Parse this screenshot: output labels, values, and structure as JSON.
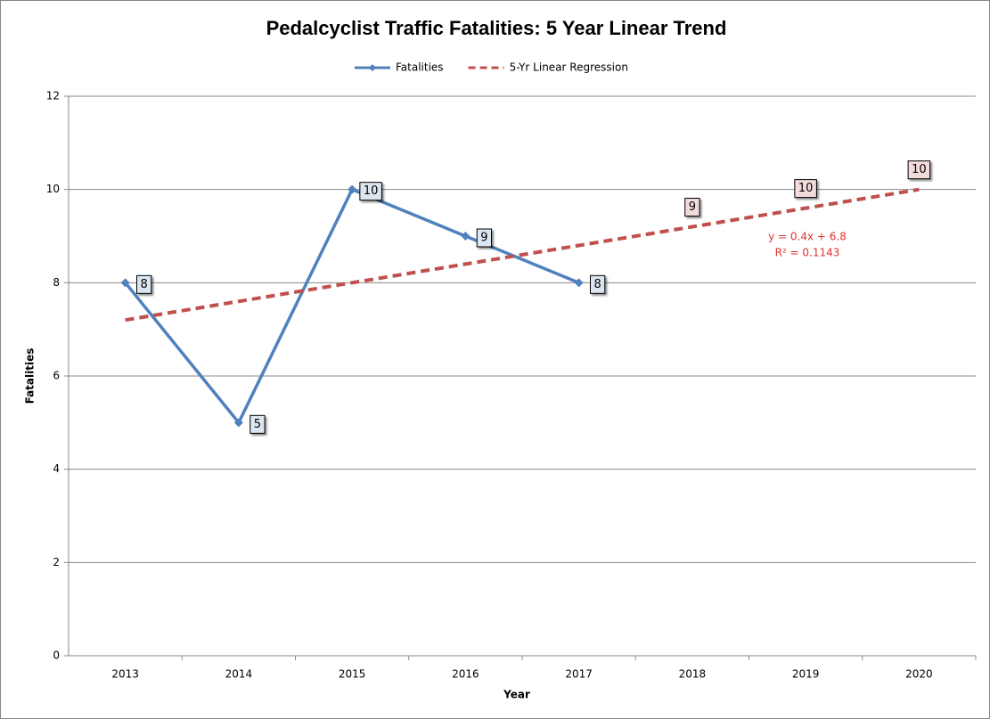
{
  "chart_data": {
    "type": "line",
    "title": "Pedalcyclist Traffic Fatalities: 5 Year Linear Trend",
    "x_label": "Year",
    "y_label": "Fatalities",
    "categories": [
      "2013",
      "2014",
      "2015",
      "2016",
      "2017",
      "2018",
      "2019",
      "2020"
    ],
    "series": [
      {
        "name": "Fatalities",
        "color": "#4f81bd",
        "values": [
          8,
          5,
          10,
          9,
          8,
          null,
          null,
          null
        ]
      },
      {
        "name": "5-Yr Linear Regression",
        "color": "#c0504d",
        "dashed": true,
        "values": [
          7.2,
          7.6,
          8.0,
          8.4,
          8.8,
          9.2,
          9.6,
          10.0
        ],
        "value_labels": [
          null,
          null,
          null,
          null,
          null,
          "9",
          "10",
          "10"
        ]
      }
    ],
    "annotations": [
      "y = 0.4x + 6.8",
      "R² = 0.1143"
    ],
    "ylim": [
      0,
      12
    ],
    "yticks": [
      0,
      2,
      4,
      6,
      8,
      10,
      12
    ],
    "grid": true,
    "legend": "top"
  }
}
